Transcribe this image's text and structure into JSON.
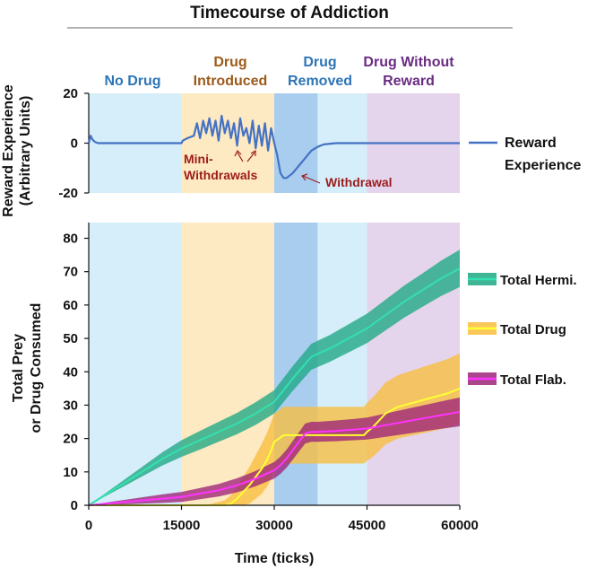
{
  "chart_data": [
    {
      "type": "line",
      "title": "Timecourse of Addiction",
      "ylabel_line1": "Reward Experience",
      "ylabel_line2": "(Arbitrary Units)",
      "xlim": [
        0,
        60000
      ],
      "ylim": [
        -20,
        20
      ],
      "yticks": [
        "-20",
        "0",
        "20"
      ],
      "phases": [
        {
          "label": "No Drug",
          "start": 0,
          "end": 15000,
          "color": "#d6eefa",
          "text_color": "#2e75b6"
        },
        {
          "label": "Drug Introduced",
          "label_lines": [
            "Drug",
            "Introduced"
          ],
          "start": 15000,
          "end": 30000,
          "color": "#fde9c2",
          "text_color": "#9c5a1a"
        },
        {
          "label": "Drug Removed",
          "label_lines": [
            "Drug",
            "Removed"
          ],
          "start": 30000,
          "end": 45000,
          "color": "#d6eefa",
          "text_color": "#2e75b6"
        },
        {
          "label": "Drug Without Reward",
          "label_lines": [
            "Drug Without",
            "Reward"
          ],
          "start": 45000,
          "end": 60000,
          "color": "#e4d5ec",
          "text_color": "#6a2c83"
        }
      ],
      "removed_band": {
        "start": 30000,
        "end": 37000,
        "color": "#a9cdef"
      },
      "series": [
        {
          "name": "Reward Experience",
          "color": "#4472c4",
          "x": [
            0,
            300,
            600,
            1000,
            1500,
            2500,
            15000,
            15200,
            16000,
            17000,
            17500,
            18000,
            18500,
            19000,
            19500,
            20000,
            20500,
            21000,
            21500,
            22000,
            22500,
            23000,
            23500,
            24000,
            24500,
            25000,
            25500,
            26000,
            26500,
            27000,
            27500,
            28000,
            28500,
            29000,
            29500,
            30000,
            30500,
            31000,
            31500,
            32000,
            33000,
            34000,
            35000,
            36000,
            37000,
            38000,
            40000,
            45000,
            60000
          ],
          "values": [
            0,
            3,
            1.5,
            0.5,
            0,
            0,
            0,
            1,
            2,
            3,
            8,
            2,
            9,
            4,
            10,
            3,
            9,
            1,
            11,
            4,
            9,
            2,
            8,
            -1,
            10,
            3,
            6,
            0,
            9,
            -2,
            7,
            -1,
            8,
            -3,
            6,
            0,
            -5,
            -12,
            -14,
            -14,
            -12,
            -9,
            -6,
            -3,
            -1.5,
            -0.5,
            0,
            0,
            0
          ]
        }
      ],
      "annotations": [
        {
          "text": "Mini-Withdrawals",
          "lines": [
            "Mini-",
            "Withdrawals"
          ],
          "color": "#9c1c1c"
        },
        {
          "text": "Withdrawal",
          "color": "#9c1c1c"
        }
      ],
      "legend": [
        {
          "label_lines": [
            "Reward",
            "Experience"
          ],
          "color": "#4472c4"
        }
      ]
    },
    {
      "type": "line",
      "xlabel": "Time (ticks)",
      "ylabel_line1": "Total Prey",
      "ylabel_line2": "or Drug Consumed",
      "ylabel": "Total Prey or Drug Consumed",
      "xlim": [
        0,
        60000
      ],
      "ylim": [
        0,
        85
      ],
      "xticks": [
        "0",
        "15000",
        "30000",
        "45000",
        "60000"
      ],
      "yticks": [
        "0",
        "10",
        "20",
        "30",
        "40",
        "50",
        "60",
        "70",
        "80"
      ],
      "series": [
        {
          "name": "Total Hermi.",
          "color": "#33e0b0",
          "band_color": "#1ea884",
          "x": [
            0,
            3000,
            6000,
            9000,
            12000,
            15000,
            18000,
            21000,
            24000,
            27000,
            30000,
            33000,
            36000,
            39000,
            42000,
            45000,
            48000,
            51000,
            54000,
            57000,
            60000
          ],
          "values": [
            0,
            3.5,
            7,
            10.5,
            14,
            17,
            19.5,
            22,
            24.5,
            27.5,
            31,
            38,
            44.5,
            47,
            50,
            53,
            57,
            61,
            64.5,
            68,
            71
          ],
          "spread": [
            0,
            0.5,
            1,
            1.5,
            2,
            2.5,
            2.8,
            3,
            3.2,
            3.4,
            3.5,
            3.7,
            3.9,
            4,
            4.2,
            4.4,
            4.6,
            4.8,
            5,
            5.3,
            5.6
          ]
        },
        {
          "name": "Total Drug",
          "color": "#ffff33",
          "band_color": "#f9be3d",
          "x": [
            0,
            15000,
            18000,
            19000,
            20000,
            21000,
            22000,
            23000,
            24000,
            25000,
            26000,
            27000,
            28000,
            28800,
            29400,
            30000,
            31500,
            36900,
            37000,
            44500,
            45000,
            46000,
            47000,
            48000,
            50000,
            52000,
            54000,
            56000,
            58000,
            60000
          ],
          "values": [
            0,
            0,
            0,
            0,
            0,
            0,
            0,
            0.5,
            2,
            4,
            6,
            8.5,
            11,
            13.5,
            16,
            19,
            21,
            21,
            21,
            21,
            22,
            23.5,
            25.5,
            27.5,
            29.5,
            30.5,
            31.5,
            32.5,
            33.5,
            35
          ],
          "spread": [
            0,
            0,
            0,
            0,
            0.5,
            1,
            1.5,
            2.5,
            3.5,
            4.5,
            5.5,
            6.5,
            7.5,
            8,
            8.5,
            8.5,
            8.5,
            8.5,
            8.5,
            8.5,
            8.7,
            8.9,
            9.1,
            9.3,
            9.5,
            9.7,
            9.9,
            10.1,
            10.3,
            10.5
          ]
        },
        {
          "name": "Total Flab.",
          "color": "#ff33ff",
          "band_color": "#9c2478",
          "x": [
            0,
            3000,
            6000,
            9000,
            12000,
            15000,
            18000,
            21000,
            24000,
            27000,
            30000,
            31000,
            32000,
            33000,
            34000,
            35000,
            36000,
            37000,
            40000,
            43000,
            45000,
            48000,
            51000,
            54000,
            57000,
            60000
          ],
          "values": [
            0,
            0.5,
            1,
            1.5,
            2,
            2.5,
            3.5,
            4.5,
            6,
            8,
            10.5,
            12,
            14,
            16.5,
            19,
            21.5,
            22,
            22,
            22.3,
            22.7,
            23,
            24,
            25,
            26,
            27,
            28
          ],
          "spread": [
            0,
            0.4,
            0.7,
            1,
            1.3,
            1.5,
            1.7,
            1.9,
            2.1,
            2.3,
            2.5,
            2.6,
            2.7,
            2.8,
            2.9,
            3,
            3,
            3,
            3.1,
            3.2,
            3.3,
            3.5,
            3.7,
            3.9,
            4.1,
            4.3
          ]
        }
      ],
      "legend": [
        {
          "label": "Total Hermi.",
          "color": "#33e0b0",
          "band_color": "#1ea884"
        },
        {
          "label": "Total Drug",
          "color": "#ffff33",
          "band_color": "#f9be3d"
        },
        {
          "label": "Total Flab.",
          "color": "#ff33ff",
          "band_color": "#9c2478"
        }
      ]
    }
  ]
}
